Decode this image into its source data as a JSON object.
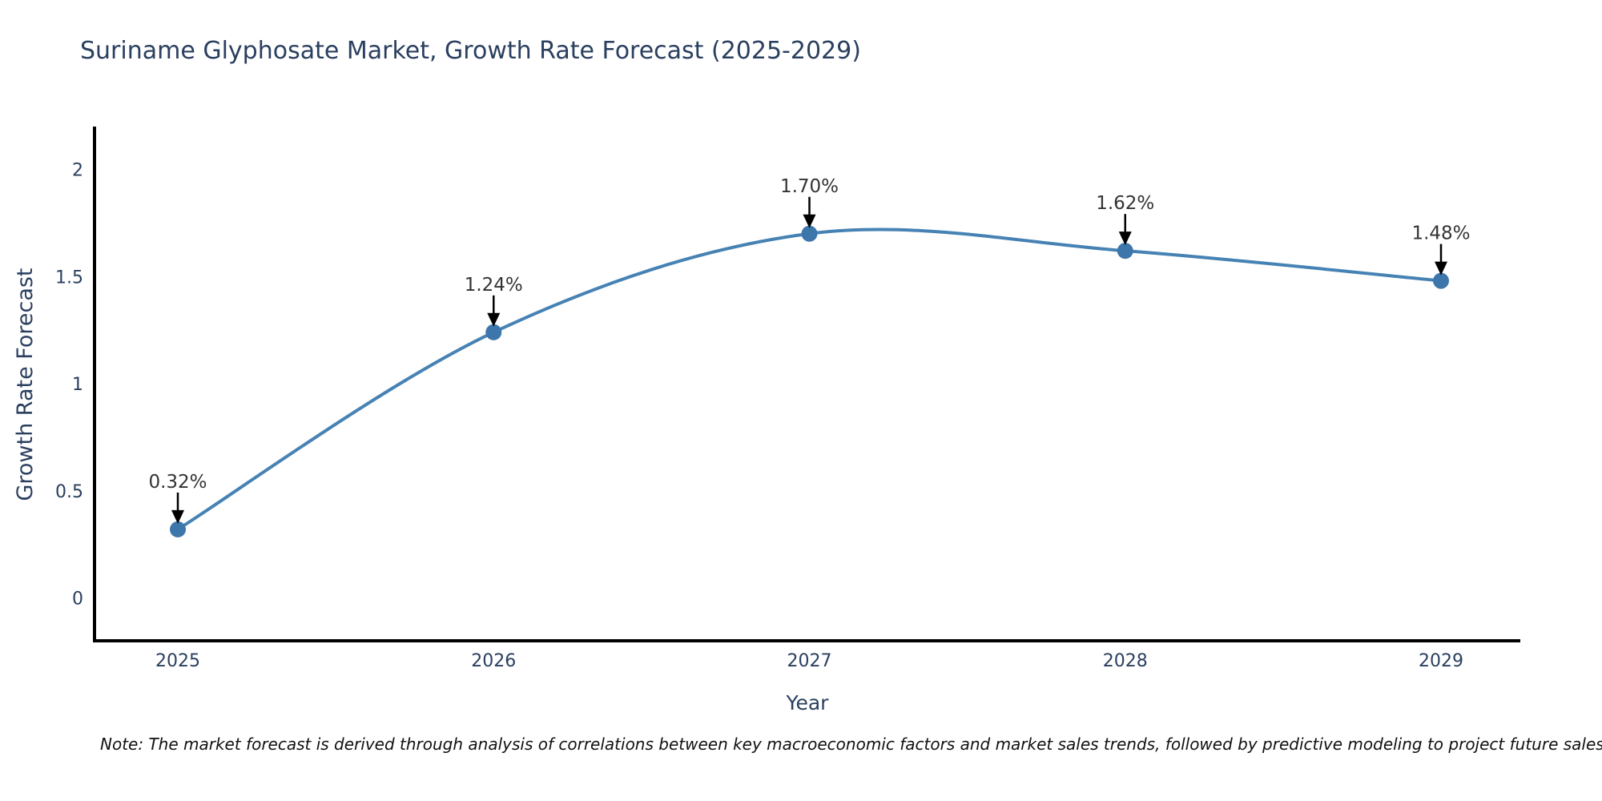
{
  "title": "Suriname Glyphosate Market, Growth Rate Forecast (2025-2029)",
  "note": "Note: The market forecast is derived through analysis of correlations between key macroeconomic factors and market sales trends, followed by predictive modeling to project future sales",
  "chart_data": {
    "type": "line",
    "title": "Suriname Glyphosate Market, Growth Rate Forecast (2025-2029)",
    "xlabel": "Year",
    "ylabel": "Growth Rate Forecast",
    "categories": [
      "2025",
      "2026",
      "2027",
      "2028",
      "2029"
    ],
    "values": [
      0.32,
      1.24,
      1.7,
      1.62,
      1.48
    ],
    "point_labels": [
      "0.32%",
      "1.24%",
      "1.70%",
      "1.62%",
      "1.48%"
    ],
    "ytick_values": [
      0,
      0.5,
      1,
      1.5,
      2
    ],
    "ytick_labels": [
      "0",
      "0.5",
      "1",
      "1.5",
      "2"
    ],
    "ylim": [
      -0.2,
      2.2
    ],
    "grid": false,
    "legend": false,
    "smooth": true,
    "colors": {
      "line": "#4682b4",
      "marker": "#3d76aa",
      "axis": "#000000",
      "tick_text": "#2a3f5f",
      "annotation_text": "#333333",
      "arrow": "#000000",
      "background": "#ffffff"
    }
  }
}
